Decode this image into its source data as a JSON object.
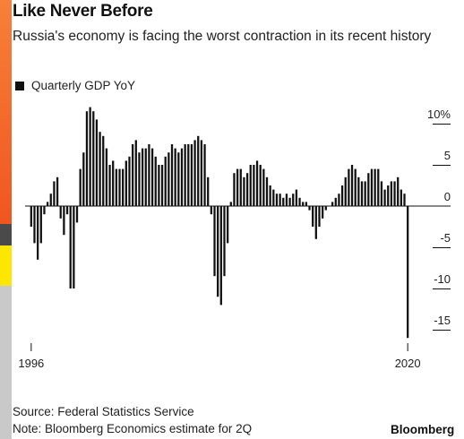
{
  "colors": {
    "bar": "#111111",
    "axis": "#111111",
    "grid": "#dddddd",
    "strip_orange": "#f26a2a",
    "strip_dark": "#4a4a4a",
    "strip_yellow": "#ffe600",
    "strip_gray": "#c9c9c9"
  },
  "brand": "Bloomberg",
  "chart_data": {
    "type": "bar",
    "title": "Like Never Before",
    "subtitle": "Russia's economy is facing the worst contraction in its recent history",
    "series": [
      {
        "name": "Quarterly GDP YoY",
        "values": [
          -2.5,
          -4.5,
          -6.5,
          -4.5,
          -1.0,
          0.5,
          1.5,
          3.0,
          3.5,
          -1.5,
          -3.5,
          -1.0,
          -10.0,
          -10.0,
          -2.0,
          4.5,
          6.5,
          11.5,
          12.0,
          11.5,
          10.5,
          9.0,
          8.5,
          7.0,
          5.0,
          5.5,
          4.5,
          4.5,
          4.5,
          5.5,
          6.0,
          7.5,
          8.0,
          6.5,
          7.0,
          7.0,
          7.5,
          7.0,
          6.0,
          5.0,
          5.0,
          6.0,
          6.5,
          7.5,
          7.0,
          6.5,
          7.0,
          7.5,
          7.5,
          7.5,
          8.0,
          8.5,
          8.0,
          7.5,
          3.5,
          -1.0,
          -8.5,
          -11.0,
          -12.0,
          -8.5,
          -4.5,
          0.5,
          4.0,
          4.5,
          4.5,
          3.5,
          4.0,
          5.0,
          5.0,
          5.5,
          5.0,
          4.5,
          3.5,
          2.5,
          2.0,
          1.5,
          1.5,
          1.0,
          1.5,
          1.0,
          1.5,
          2.0,
          1.0,
          0.5,
          0.5,
          -0.5,
          -2.5,
          -4.0,
          -2.5,
          -1.5,
          -0.5,
          0.0,
          0.5,
          1.0,
          1.5,
          2.5,
          3.5,
          4.5,
          5.0,
          4.5,
          3.5,
          3.0,
          3.0,
          4.0,
          4.5,
          4.5,
          4.5,
          3.0,
          2.0,
          2.5,
          3.0,
          3.0,
          3.5,
          2.0,
          1.5,
          -16.0
        ]
      }
    ],
    "x_range": [
      "1996",
      "2020"
    ],
    "ylim": [
      -16,
      11
    ],
    "yticks": [
      {
        "value": 10,
        "label": "10%"
      },
      {
        "value": 5,
        "label": "5"
      },
      {
        "value": 0,
        "label": "0"
      },
      {
        "value": -5,
        "label": "-5"
      },
      {
        "value": -10,
        "label": "-10"
      },
      {
        "value": -15,
        "label": "-15"
      }
    ],
    "xticks": [
      {
        "index": 0,
        "label": "1996"
      },
      {
        "index": 115,
        "label": "2020"
      }
    ],
    "grid": false,
    "legend_position": "top-left",
    "source": "Source: Federal Statistics Service",
    "note": "Note: Bloomberg Economics estimate for 2Q"
  }
}
